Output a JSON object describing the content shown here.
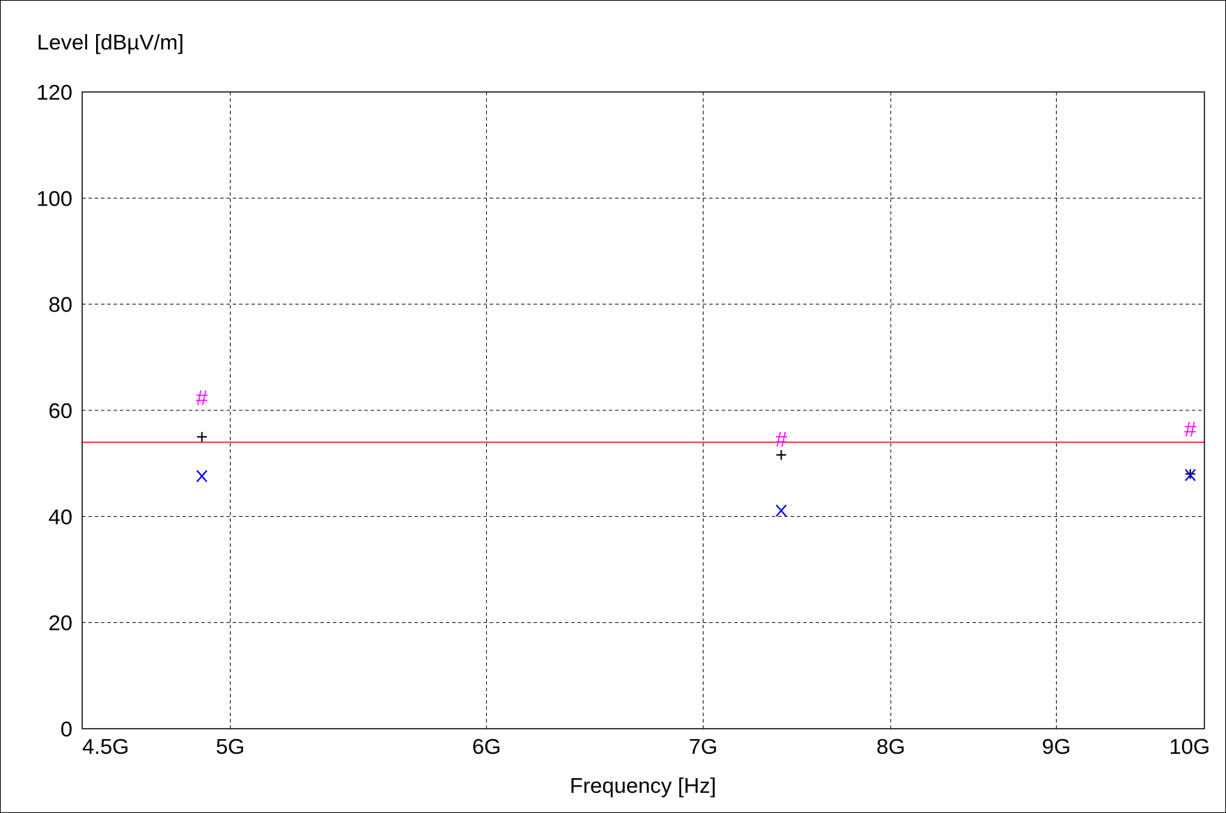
{
  "chart_data": {
    "type": "scatter",
    "title": "",
    "xlabel": "Frequency [Hz]",
    "ylabel": "Level [dBµV/m]",
    "xscale": "log",
    "xlim": [
      4500000000,
      10000000000
    ],
    "ylim": [
      0,
      120
    ],
    "grid": true,
    "x_ticks": [
      {
        "value": 4500000000,
        "label": "4.5G"
      },
      {
        "value": 5000000000,
        "label": "5G"
      },
      {
        "value": 6000000000,
        "label": "6G"
      },
      {
        "value": 7000000000,
        "label": "7G"
      },
      {
        "value": 8000000000,
        "label": "8G"
      },
      {
        "value": 9000000000,
        "label": "9G"
      },
      {
        "value": 10000000000,
        "label": "10G"
      }
    ],
    "y_ticks": [
      {
        "value": 0,
        "label": "0"
      },
      {
        "value": 20,
        "label": "20"
      },
      {
        "value": 40,
        "label": "40"
      },
      {
        "value": 60,
        "label": "60"
      },
      {
        "value": 80,
        "label": "80"
      },
      {
        "value": 100,
        "label": "100"
      },
      {
        "value": 120,
        "label": "120"
      }
    ],
    "limit_line": {
      "value": 54,
      "color": "#ff0000"
    },
    "series": [
      {
        "marker": "#",
        "color": "#ff00ff",
        "points": [
          [
            4900000000,
            62.4
          ],
          [
            7400000000,
            54.6
          ],
          [
            9900000000,
            56.5
          ]
        ]
      },
      {
        "marker": "+",
        "color": "#000000",
        "points": [
          [
            4900000000,
            55.0
          ],
          [
            7400000000,
            51.6
          ],
          [
            9900000000,
            48.0
          ]
        ]
      },
      {
        "marker": "x",
        "color": "#0000ff",
        "points": [
          [
            4900000000,
            47.6
          ],
          [
            7400000000,
            41.1
          ],
          [
            9900000000,
            47.8
          ]
        ]
      }
    ]
  }
}
